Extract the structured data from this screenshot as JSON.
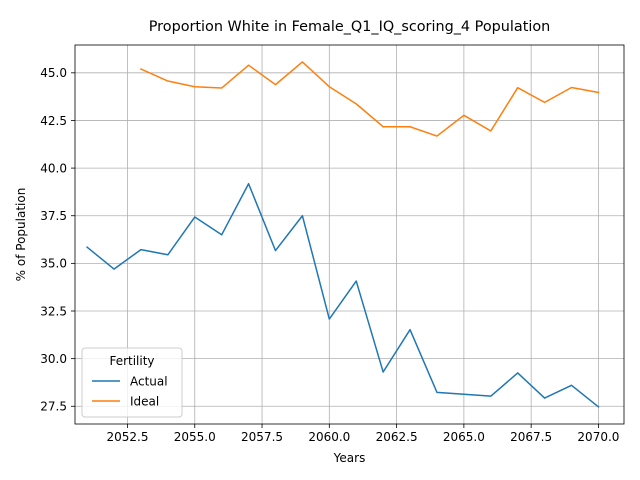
{
  "chart_data": {
    "type": "line",
    "title": "Proportion White in Female_Q1_IQ_scoring_4 Population",
    "xlabel": "Years",
    "ylabel": "% of Population",
    "xlim": [
      2050.55,
      2070.95
    ],
    "ylim": [
      26.57,
      46.46
    ],
    "x_ticks": [
      2052.5,
      2055.0,
      2057.5,
      2060.0,
      2062.5,
      2065.0,
      2067.5,
      2070.0
    ],
    "x_tick_labels": [
      "2052.5",
      "2055.0",
      "2057.5",
      "2060.0",
      "2062.5",
      "2065.0",
      "2067.5",
      "2070.0"
    ],
    "y_ticks": [
      27.5,
      30.0,
      32.5,
      35.0,
      37.5,
      40.0,
      42.5,
      45.0
    ],
    "y_tick_labels": [
      "27.5",
      "30.0",
      "32.5",
      "35.0",
      "37.5",
      "40.0",
      "42.5",
      "45.0"
    ],
    "grid": true,
    "legend": {
      "title": "Fertility",
      "placement": "lower left"
    },
    "series": [
      {
        "name": "Actual",
        "color": "#1f77b4",
        "x": [
          2051,
          2052,
          2053,
          2054,
          2055,
          2056,
          2057,
          2058,
          2059,
          2060,
          2061,
          2062,
          2063,
          2064,
          2065,
          2066,
          2067,
          2068,
          2069,
          2070
        ],
        "values": [
          35.85,
          34.7,
          35.72,
          35.45,
          37.43,
          36.5,
          39.18,
          35.67,
          37.5,
          32.08,
          34.07,
          29.3,
          31.52,
          28.23,
          28.13,
          28.03,
          29.25,
          27.93,
          28.6,
          27.47
        ]
      },
      {
        "name": "Ideal",
        "color": "#ff7f0e",
        "x": [
          2053,
          2054,
          2055,
          2056,
          2057,
          2058,
          2059,
          2060,
          2061,
          2062,
          2063,
          2064,
          2065,
          2066,
          2067,
          2068,
          2069,
          2070
        ],
        "values": [
          45.2,
          44.57,
          44.27,
          44.2,
          45.4,
          44.38,
          45.57,
          44.27,
          43.37,
          42.17,
          42.17,
          41.68,
          42.77,
          41.95,
          44.22,
          43.45,
          44.23,
          43.97
        ]
      }
    ]
  }
}
